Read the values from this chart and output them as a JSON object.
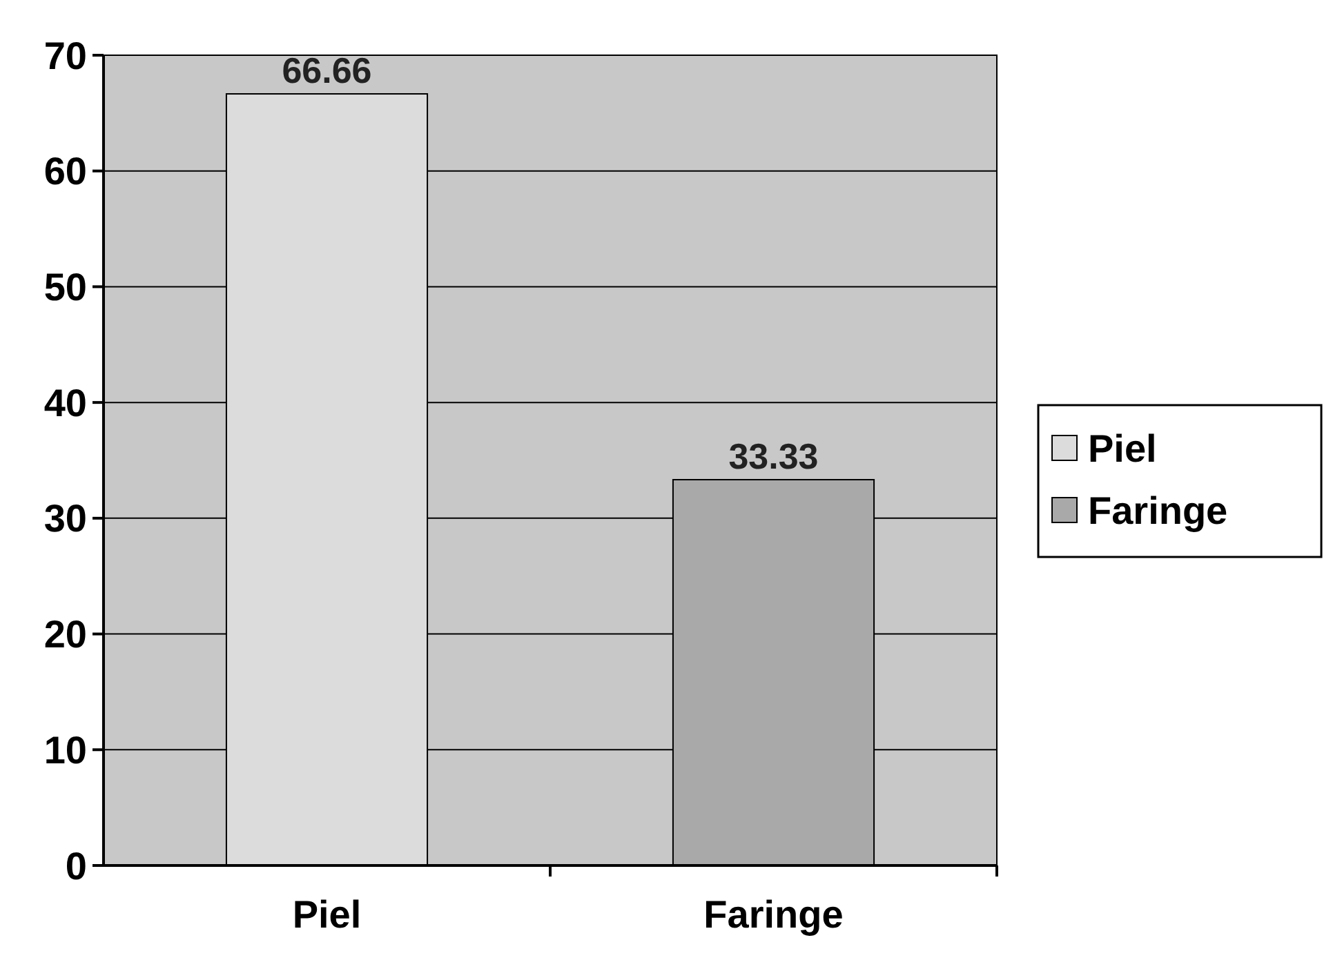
{
  "chart_data": {
    "type": "bar",
    "categories": [
      "Piel",
      "Faringe"
    ],
    "series": [
      {
        "name": "Piel",
        "color": "#dcdcdc",
        "values": [
          66.66,
          null
        ]
      },
      {
        "name": "Faringe",
        "color": "#a9a9a9",
        "values": [
          null,
          33.33
        ]
      }
    ],
    "ylim": [
      0,
      70
    ],
    "yticks": [
      0,
      10,
      20,
      30,
      40,
      50,
      60,
      70
    ],
    "grid": "y",
    "legend": "right",
    "data_labels": true
  }
}
